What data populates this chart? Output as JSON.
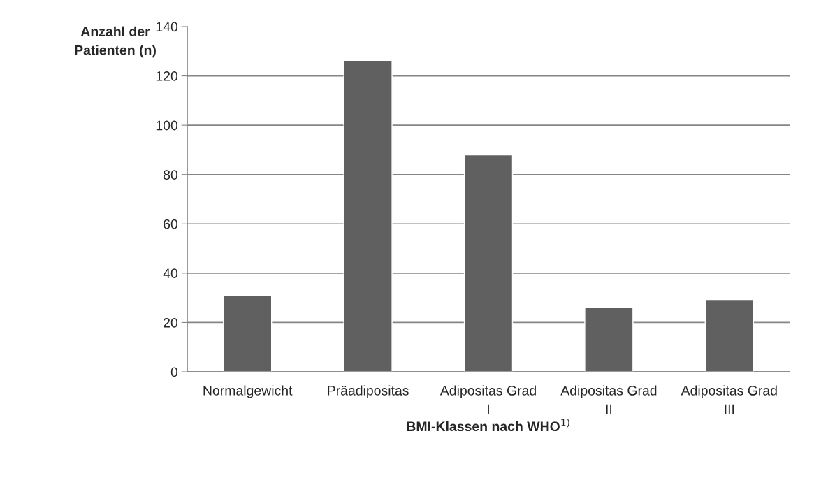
{
  "chart_data": {
    "type": "bar",
    "categories": [
      "Normalgewicht",
      "Präadipositas",
      "Adipositas Grad I",
      "Adipositas Grad II",
      "Adipositas Grad III"
    ],
    "values": [
      31,
      126,
      88,
      26,
      29
    ],
    "color": "#606060",
    "xlabel": "BMI-Klassen nach WHO$^{1)}$",
    "ylabel": "Anzahl der Patienten (n)",
    "ylim": [
      0,
      140
    ],
    "yticks": [
      0,
      20,
      40,
      60,
      80,
      100,
      120,
      140
    ],
    "grid": "y",
    "legend": false
  }
}
